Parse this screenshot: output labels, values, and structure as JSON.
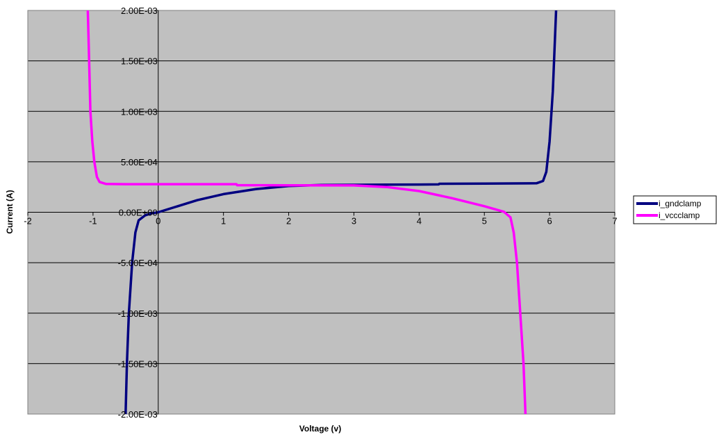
{
  "chart_data": {
    "type": "line",
    "title": "",
    "xlabel": "Voltage (v)",
    "ylabel": "Current (A)",
    "xlim": [
      -2,
      7
    ],
    "ylim": [
      -0.002,
      0.002
    ],
    "x_ticks": [
      -2,
      -1,
      0,
      1,
      2,
      3,
      4,
      5,
      6,
      7
    ],
    "x_tick_labels": [
      "-2",
      "-1",
      "0",
      "1",
      "2",
      "3",
      "4",
      "5",
      "6",
      "7"
    ],
    "y_ticks": [
      0.002,
      0.0015,
      0.001,
      0.0005,
      0,
      -0.0005,
      -0.001,
      -0.0015,
      -0.002
    ],
    "y_tick_labels": [
      "2.00E-03",
      "1.50E-03",
      "1.00E-03",
      "5.00E-04",
      "0.00E+00",
      "-5.00E-04",
      "-1.00E-03",
      "-1.50E-03",
      "-2.00E-03"
    ],
    "grid": "horizontal",
    "legend_position": "right",
    "plot_background": "#c0c0c0",
    "series": [
      {
        "name": "i_gndclamp",
        "color": "#000080",
        "points": [
          [
            -0.5,
            -0.002
          ],
          [
            -0.48,
            -0.0015
          ],
          [
            -0.45,
            -0.001
          ],
          [
            -0.4,
            -0.0005
          ],
          [
            -0.35,
            -0.0002
          ],
          [
            -0.3,
            -8e-05
          ],
          [
            -0.2,
            -3e-05
          ],
          [
            -0.1,
            -1e-05
          ],
          [
            0,
            0
          ],
          [
            0.3,
            6e-05
          ],
          [
            0.6,
            0.00012
          ],
          [
            1,
            0.00018
          ],
          [
            1.5,
            0.00023
          ],
          [
            2,
            0.00026
          ],
          [
            2.5,
            0.00027
          ],
          [
            3,
            0.000272
          ],
          [
            3.5,
            0.000274
          ],
          [
            4,
            0.000275
          ],
          [
            4.3,
            0.000276
          ],
          [
            4.31,
            0.000282
          ],
          [
            5,
            0.000284
          ],
          [
            5.8,
            0.000287
          ],
          [
            5.9,
            0.00031
          ],
          [
            5.95,
            0.0004
          ],
          [
            6.0,
            0.0007
          ],
          [
            6.05,
            0.0012
          ],
          [
            6.1,
            0.002
          ]
        ]
      },
      {
        "name": "i_vccclamp",
        "color": "#ff00ff",
        "points": [
          [
            -1.08,
            0.002
          ],
          [
            -1.06,
            0.0015
          ],
          [
            -1.04,
            0.001
          ],
          [
            -1.01,
            0.0007
          ],
          [
            -0.98,
            0.0005
          ],
          [
            -0.94,
            0.00035
          ],
          [
            -0.9,
            0.0003
          ],
          [
            -0.8,
            0.00028
          ],
          [
            -0.5,
            0.000278
          ],
          [
            0,
            0.000278
          ],
          [
            1,
            0.000278
          ],
          [
            1.2,
            0.000278
          ],
          [
            1.21,
            0.000268
          ],
          [
            2,
            0.000267
          ],
          [
            3,
            0.000266
          ],
          [
            3.5,
            0.00025
          ],
          [
            4,
            0.00021
          ],
          [
            4.5,
            0.00014
          ],
          [
            5,
            6e-05
          ],
          [
            5.3,
            5e-06
          ],
          [
            5.4,
            -5e-05
          ],
          [
            5.45,
            -0.0002
          ],
          [
            5.5,
            -0.0005
          ],
          [
            5.55,
            -0.001
          ],
          [
            5.6,
            -0.0015
          ],
          [
            5.63,
            -0.002
          ]
        ]
      }
    ]
  }
}
